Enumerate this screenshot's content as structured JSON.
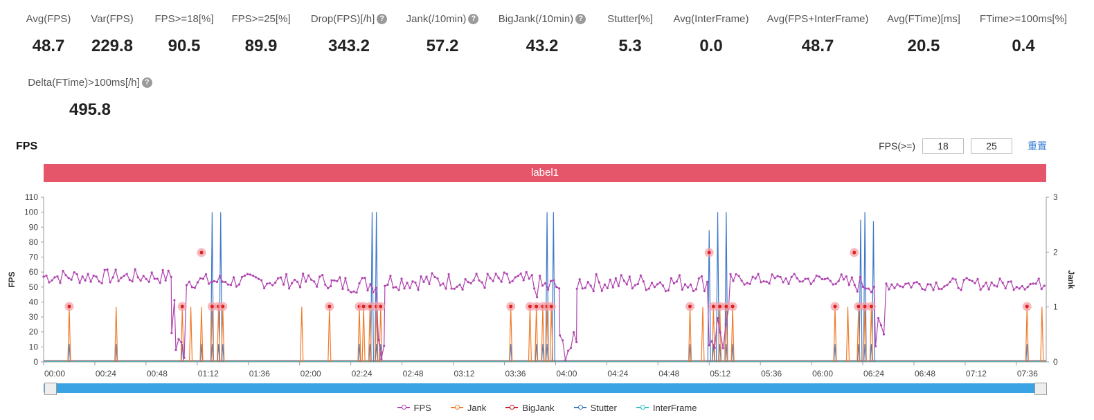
{
  "metrics": [
    {
      "label": "Avg(FPS)",
      "value": "48.7",
      "help": false
    },
    {
      "label": "Var(FPS)",
      "value": "229.8",
      "help": false
    },
    {
      "label": "FPS>=18[%]",
      "value": "90.5",
      "help": false
    },
    {
      "label": "FPS>=25[%]",
      "value": "89.9",
      "help": false
    },
    {
      "label": "Drop(FPS)[/h]",
      "value": "343.2",
      "help": true
    },
    {
      "label": "Jank(/10min)",
      "value": "57.2",
      "help": true
    },
    {
      "label": "BigJank(/10min)",
      "value": "43.2",
      "help": true
    },
    {
      "label": "Stutter[%]",
      "value": "5.3",
      "help": false
    },
    {
      "label": "Avg(InterFrame)",
      "value": "0.0",
      "help": false
    },
    {
      "label": "Avg(FPS+InterFrame)",
      "value": "48.7",
      "help": false
    },
    {
      "label": "Avg(FTime)[ms]",
      "value": "20.5",
      "help": false
    },
    {
      "label": "FTime>=100ms[%]",
      "value": "0.4",
      "help": false
    },
    {
      "label": "Delta(FTime)>100ms[/h]",
      "value": "495.8",
      "help": true
    }
  ],
  "chart_title": "FPS",
  "fps_threshold": {
    "label": "FPS(>=)",
    "low": "18",
    "high": "25",
    "reset_label": "重置"
  },
  "label_bar": "label1",
  "chart_data": {
    "type": "line",
    "y_label": "FPS",
    "y2_label": "Jank",
    "ylim": [
      0,
      110
    ],
    "y2lim": [
      0,
      3
    ],
    "y_ticks": [
      "0",
      "10",
      "20",
      "30",
      "40",
      "50",
      "60",
      "70",
      "80",
      "90",
      "100",
      "110"
    ],
    "y2_ticks": [
      "0",
      "1",
      "2",
      "3"
    ],
    "x_ticks": [
      "00:00",
      "00:24",
      "00:48",
      "01:12",
      "01:36",
      "02:00",
      "02:24",
      "02:48",
      "03:12",
      "03:36",
      "04:00",
      "04:24",
      "04:48",
      "05:12",
      "05:36",
      "06:00",
      "06:24",
      "06:48",
      "07:12",
      "07:36"
    ],
    "x_range_min": [
      0,
      470
    ],
    "fps_segments": [
      {
        "x": [
          0,
          60
        ],
        "base": 57,
        "amp": 5
      },
      {
        "x": [
          60,
          62
        ],
        "base": 35,
        "amp": 30
      },
      {
        "x": [
          62,
          67
        ],
        "base": 10,
        "amp": 10
      },
      {
        "x": [
          67,
          135
        ],
        "base": 54,
        "amp": 5
      },
      {
        "x": [
          135,
          157
        ],
        "base": 52,
        "amp": 6
      },
      {
        "x": [
          157,
          160
        ],
        "base": 15,
        "amp": 15
      },
      {
        "x": [
          160,
          230
        ],
        "base": 54,
        "amp": 6
      },
      {
        "x": [
          230,
          242
        ],
        "base": 50,
        "amp": 8
      },
      {
        "x": [
          242,
          250
        ],
        "base": 10,
        "amp": 10
      },
      {
        "x": [
          250,
          312
        ],
        "base": 53,
        "amp": 6
      },
      {
        "x": [
          312,
          322
        ],
        "base": 20,
        "amp": 20
      },
      {
        "x": [
          322,
          375
        ],
        "base": 55,
        "amp": 4
      },
      {
        "x": [
          375,
          390
        ],
        "base": 52,
        "amp": 6
      },
      {
        "x": [
          390,
          395
        ],
        "base": 15,
        "amp": 15
      },
      {
        "x": [
          395,
          470
        ],
        "base": 52,
        "amp": 4
      }
    ],
    "jank_times": [
      12,
      34,
      65,
      69,
      74,
      79,
      82,
      84,
      121,
      134,
      148,
      150,
      153,
      156,
      158,
      219,
      228,
      231,
      234,
      236,
      238,
      303,
      309,
      314,
      317,
      320,
      323,
      371,
      377,
      382,
      385,
      388,
      461,
      468
    ],
    "big_jank_times": [
      12,
      34,
      65,
      74,
      79,
      82,
      84,
      148,
      153,
      156,
      158,
      219,
      231,
      234,
      236,
      303,
      314,
      317,
      320,
      323,
      371,
      382,
      385,
      388,
      461
    ],
    "stutter_spikes": [
      {
        "t": 79,
        "v": 100
      },
      {
        "t": 83,
        "v": 100
      },
      {
        "t": 154,
        "v": 100
      },
      {
        "t": 156,
        "v": 100
      },
      {
        "t": 236,
        "v": 100
      },
      {
        "t": 239,
        "v": 100
      },
      {
        "t": 312,
        "v": 88
      },
      {
        "t": 316,
        "v": 100
      },
      {
        "t": 320,
        "v": 100
      },
      {
        "t": 383,
        "v": 95
      },
      {
        "t": 385,
        "v": 100
      },
      {
        "t": 389,
        "v": 94
      }
    ],
    "marker_points": [
      {
        "t": 12,
        "v": 37
      },
      {
        "t": 74,
        "v": 73
      },
      {
        "t": 65,
        "v": 37
      },
      {
        "t": 79,
        "v": 37
      },
      {
        "t": 82,
        "v": 37
      },
      {
        "t": 84,
        "v": 37
      },
      {
        "t": 134,
        "v": 37
      },
      {
        "t": 148,
        "v": 37
      },
      {
        "t": 150,
        "v": 37
      },
      {
        "t": 153,
        "v": 37
      },
      {
        "t": 156,
        "v": 37
      },
      {
        "t": 158,
        "v": 37
      },
      {
        "t": 219,
        "v": 37
      },
      {
        "t": 228,
        "v": 37
      },
      {
        "t": 231,
        "v": 37
      },
      {
        "t": 234,
        "v": 37
      },
      {
        "t": 236,
        "v": 37
      },
      {
        "t": 238,
        "v": 37
      },
      {
        "t": 303,
        "v": 37
      },
      {
        "t": 312,
        "v": 73
      },
      {
        "t": 314,
        "v": 37
      },
      {
        "t": 317,
        "v": 37
      },
      {
        "t": 320,
        "v": 37
      },
      {
        "t": 323,
        "v": 37
      },
      {
        "t": 371,
        "v": 37
      },
      {
        "t": 380,
        "v": 73
      },
      {
        "t": 382,
        "v": 37
      },
      {
        "t": 385,
        "v": 37
      },
      {
        "t": 388,
        "v": 37
      },
      {
        "t": 461,
        "v": 37
      }
    ],
    "series": [
      {
        "name": "FPS",
        "color": "#b044b0"
      },
      {
        "name": "Jank",
        "color": "#f07b2a"
      },
      {
        "name": "BigJank",
        "color": "#c8202c"
      },
      {
        "name": "Stutter",
        "color": "#3f78c8"
      },
      {
        "name": "InterFrame",
        "color": "#2ec4c6"
      }
    ],
    "legend_position": "bottom"
  }
}
